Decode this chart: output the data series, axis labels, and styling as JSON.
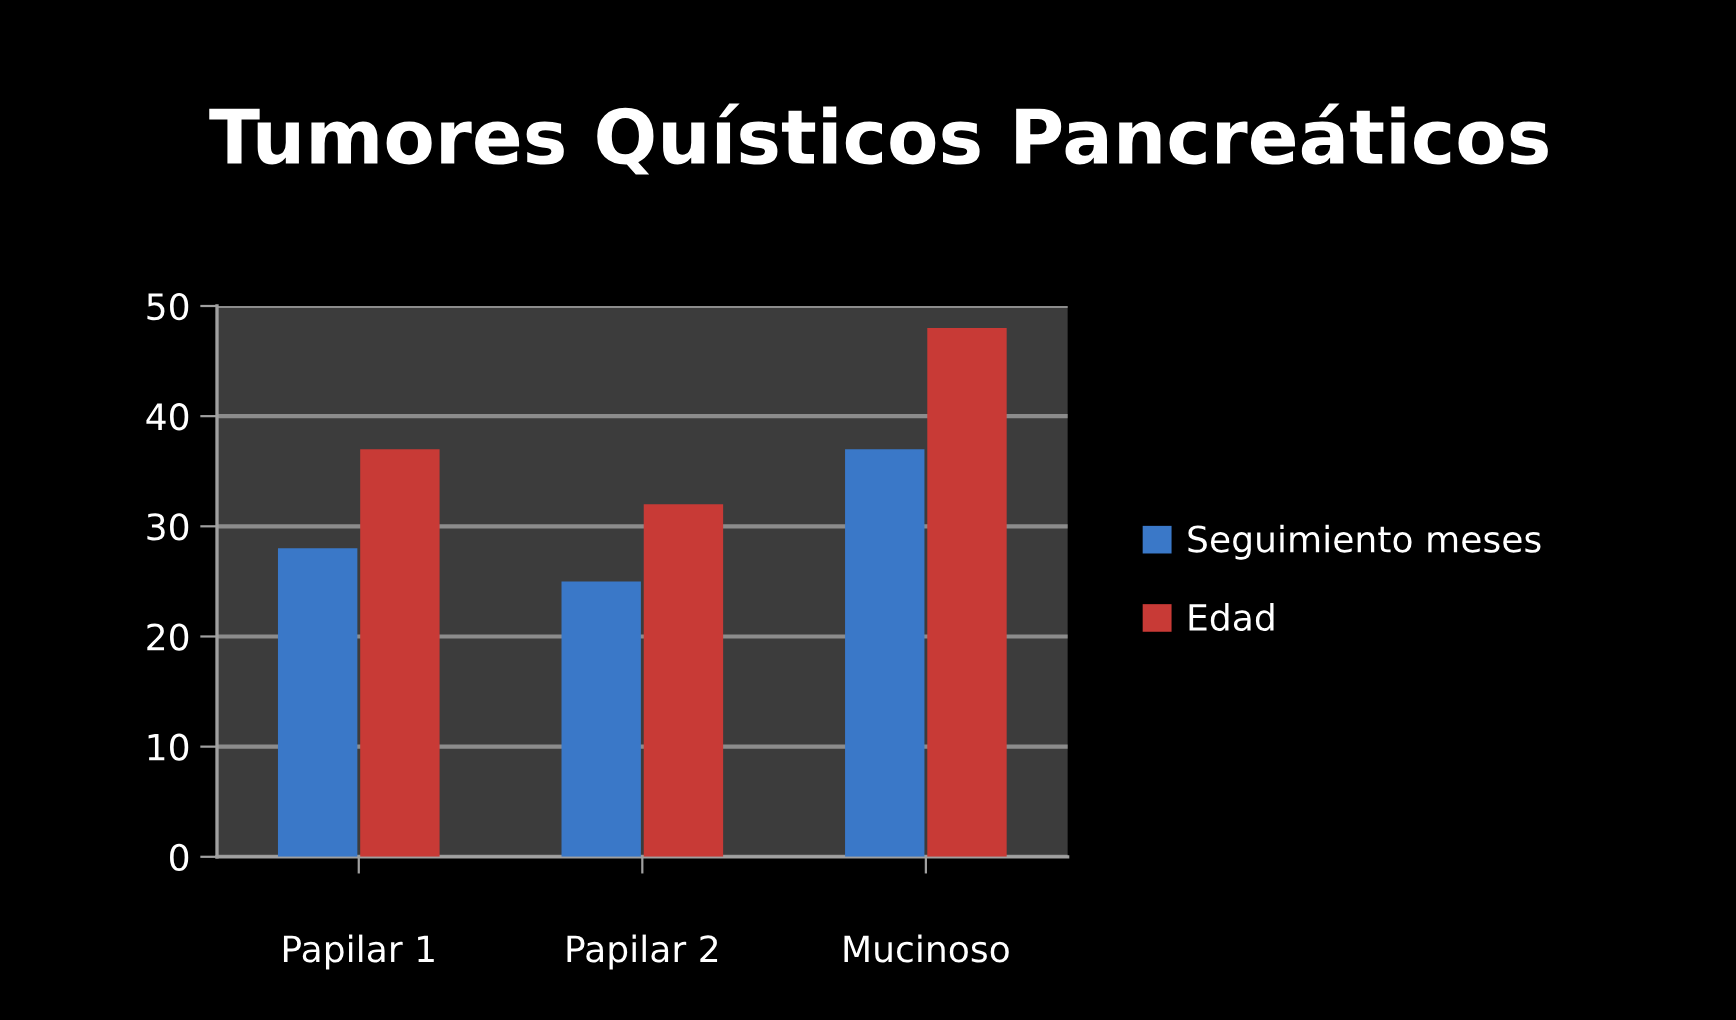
{
  "chart_data": {
    "type": "bar",
    "title": "Tumores Quísticos Pancreáticos",
    "categories": [
      "Papilar 1",
      "Papilar 2",
      "Mucinoso"
    ],
    "series": [
      {
        "name": "Seguimiento meses",
        "color": "#3a78c8",
        "values": [
          28,
          25,
          37
        ]
      },
      {
        "name": "Edad",
        "color": "#c83a36",
        "values": [
          37,
          32,
          48
        ]
      }
    ],
    "ylim": [
      0,
      50
    ],
    "yticks": [
      0,
      10,
      20,
      30,
      40,
      50
    ],
    "grid": "y",
    "legend": "right"
  }
}
